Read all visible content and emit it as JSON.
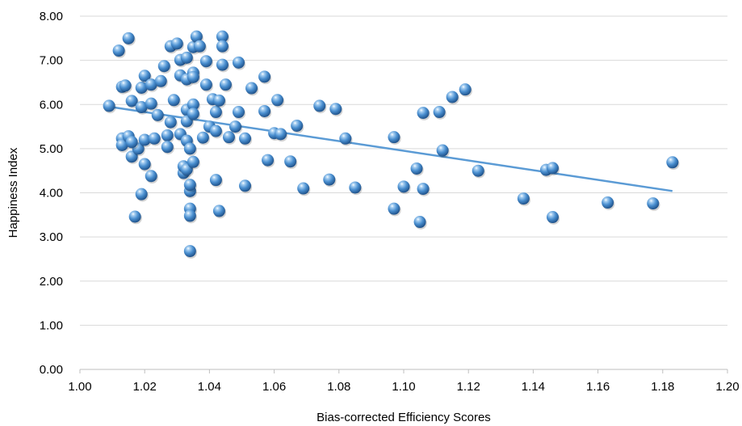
{
  "chart_data": {
    "type": "scatter",
    "title": "",
    "xlabel": "Bias-corrected Efficiency Scores",
    "ylabel": "Happiness Index",
    "xlim": [
      1.0,
      1.2
    ],
    "ylim": [
      0.0,
      8.0
    ],
    "x_ticks": [
      "1.00",
      "1.02",
      "1.04",
      "1.06",
      "1.08",
      "1.10",
      "1.12",
      "1.14",
      "1.16",
      "1.18",
      "1.20"
    ],
    "y_ticks": [
      "0.00",
      "1.00",
      "2.00",
      "3.00",
      "4.00",
      "5.00",
      "6.00",
      "7.00",
      "8.00"
    ],
    "grid": "horizontal",
    "legend": "none",
    "marker_color": "#4a8fd0",
    "trendline": {
      "type": "linear",
      "color": "#5b9bd5",
      "x": [
        1.009,
        1.183
      ],
      "y": [
        5.95,
        4.04
      ]
    },
    "points": [
      [
        1.009,
        5.97
      ],
      [
        1.012,
        7.22
      ],
      [
        1.013,
        6.4
      ],
      [
        1.014,
        6.43
      ],
      [
        1.015,
        7.5
      ],
      [
        1.013,
        5.23
      ],
      [
        1.013,
        5.08
      ],
      [
        1.015,
        5.28
      ],
      [
        1.016,
        6.08
      ],
      [
        1.016,
        4.82
      ],
      [
        1.017,
        3.46
      ],
      [
        1.018,
        5.0
      ],
      [
        1.016,
        5.15
      ],
      [
        1.019,
        6.38
      ],
      [
        1.02,
        6.65
      ],
      [
        1.019,
        5.94
      ],
      [
        1.019,
        3.97
      ],
      [
        1.02,
        4.65
      ],
      [
        1.02,
        5.2
      ],
      [
        1.022,
        6.45
      ],
      [
        1.022,
        6.02
      ],
      [
        1.022,
        4.38
      ],
      [
        1.023,
        5.23
      ],
      [
        1.024,
        5.76
      ],
      [
        1.025,
        6.53
      ],
      [
        1.026,
        6.87
      ],
      [
        1.027,
        5.3
      ],
      [
        1.027,
        5.04
      ],
      [
        1.028,
        7.32
      ],
      [
        1.028,
        5.6
      ],
      [
        1.029,
        6.1
      ],
      [
        1.03,
        7.38
      ],
      [
        1.031,
        7.01
      ],
      [
        1.031,
        6.66
      ],
      [
        1.031,
        5.33
      ],
      [
        1.032,
        4.45
      ],
      [
        1.032,
        4.6
      ],
      [
        1.033,
        7.06
      ],
      [
        1.033,
        6.57
      ],
      [
        1.033,
        5.88
      ],
      [
        1.033,
        5.62
      ],
      [
        1.033,
        5.18
      ],
      [
        1.033,
        4.53
      ],
      [
        1.034,
        5.0
      ],
      [
        1.034,
        4.04
      ],
      [
        1.034,
        4.18
      ],
      [
        1.034,
        3.64
      ],
      [
        1.034,
        3.48
      ],
      [
        1.034,
        2.68
      ],
      [
        1.035,
        6.72
      ],
      [
        1.035,
        6.62
      ],
      [
        1.035,
        7.3
      ],
      [
        1.035,
        6.0
      ],
      [
        1.035,
        5.79
      ],
      [
        1.035,
        4.7
      ],
      [
        1.036,
        7.54
      ],
      [
        1.037,
        7.32
      ],
      [
        1.038,
        5.25
      ],
      [
        1.039,
        6.45
      ],
      [
        1.039,
        6.98
      ],
      [
        1.04,
        5.5
      ],
      [
        1.041,
        6.12
      ],
      [
        1.042,
        5.83
      ],
      [
        1.042,
        5.4
      ],
      [
        1.042,
        4.29
      ],
      [
        1.043,
        6.09
      ],
      [
        1.043,
        3.59
      ],
      [
        1.044,
        7.54
      ],
      [
        1.044,
        7.32
      ],
      [
        1.044,
        6.9
      ],
      [
        1.045,
        6.45
      ],
      [
        1.046,
        5.26
      ],
      [
        1.048,
        5.5
      ],
      [
        1.049,
        6.95
      ],
      [
        1.049,
        5.83
      ],
      [
        1.051,
        5.23
      ],
      [
        1.051,
        4.16
      ],
      [
        1.053,
        6.37
      ],
      [
        1.057,
        6.63
      ],
      [
        1.057,
        5.85
      ],
      [
        1.058,
        4.74
      ],
      [
        1.06,
        5.35
      ],
      [
        1.061,
        6.1
      ],
      [
        1.062,
        5.33
      ],
      [
        1.065,
        4.71
      ],
      [
        1.067,
        5.52
      ],
      [
        1.069,
        4.1
      ],
      [
        1.074,
        5.97
      ],
      [
        1.077,
        4.3
      ],
      [
        1.079,
        5.9
      ],
      [
        1.082,
        5.23
      ],
      [
        1.085,
        4.12
      ],
      [
        1.097,
        5.26
      ],
      [
        1.097,
        3.64
      ],
      [
        1.1,
        4.14
      ],
      [
        1.104,
        4.55
      ],
      [
        1.105,
        3.34
      ],
      [
        1.106,
        5.81
      ],
      [
        1.106,
        4.09
      ],
      [
        1.111,
        5.83
      ],
      [
        1.112,
        4.96
      ],
      [
        1.115,
        6.17
      ],
      [
        1.119,
        6.34
      ],
      [
        1.123,
        4.5
      ],
      [
        1.137,
        3.87
      ],
      [
        1.144,
        4.52
      ],
      [
        1.146,
        4.56
      ],
      [
        1.146,
        3.45
      ],
      [
        1.163,
        3.78
      ],
      [
        1.177,
        3.76
      ],
      [
        1.183,
        4.69
      ]
    ]
  }
}
